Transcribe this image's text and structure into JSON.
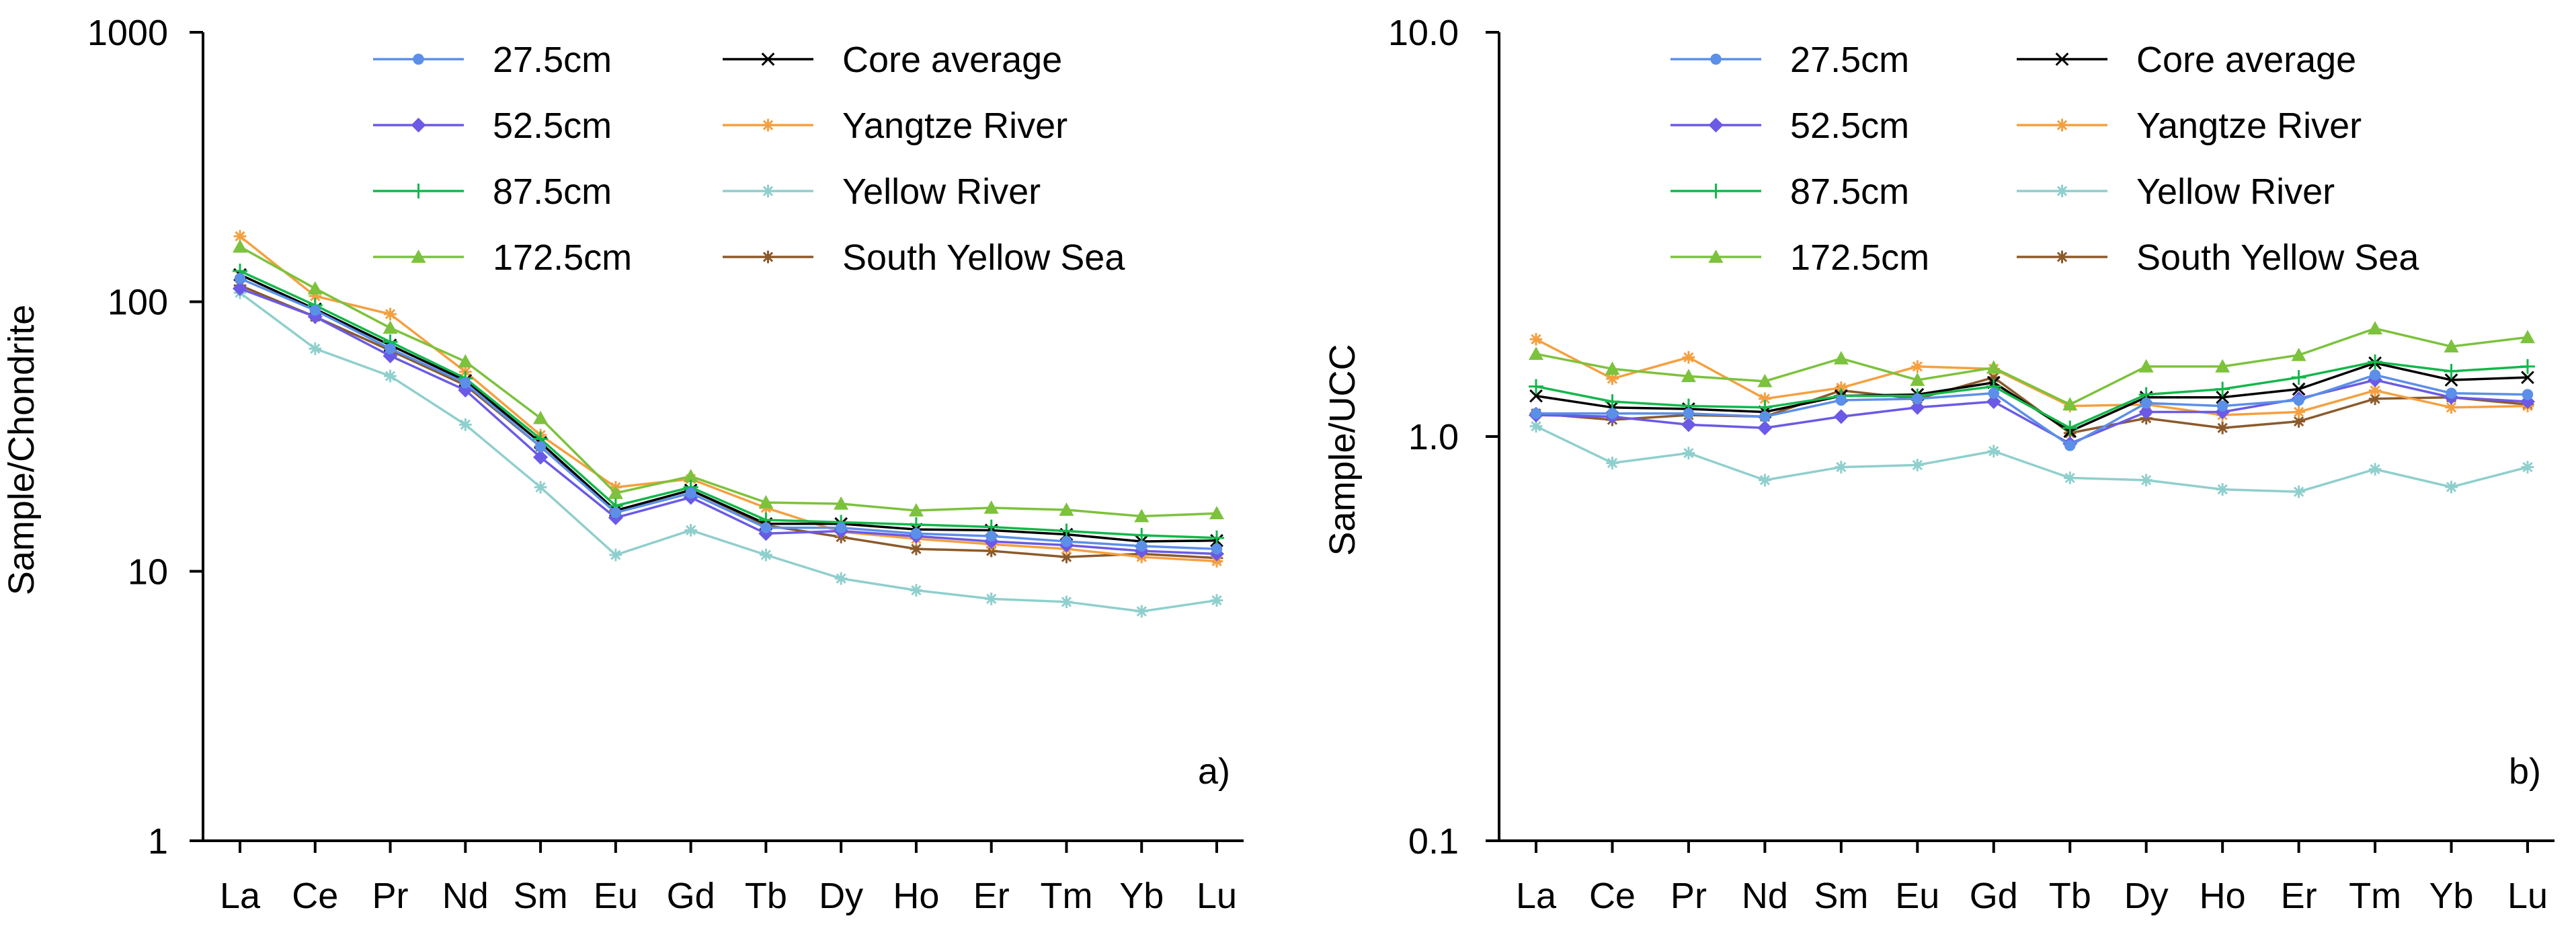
{
  "figure": {
    "caption": ""
  },
  "chart_data": [
    {
      "type": "line",
      "panel_label": "a)",
      "title": "",
      "xlabel": "",
      "ylabel": "Sample/Chondrite",
      "yscale": "log",
      "ylim": [
        1,
        1000
      ],
      "yticks": [
        "1",
        "10",
        "100",
        "1000"
      ],
      "categories": [
        "La",
        "Ce",
        "Pr",
        "Nd",
        "Sm",
        "Eu",
        "Gd",
        "Tb",
        "Dy",
        "Ho",
        "Er",
        "Tm",
        "Yb",
        "Lu"
      ],
      "legend_position": "top",
      "series": [
        {
          "name": "27.5cm",
          "color": "#5b8fe8",
          "marker": "circle",
          "values": [
            122,
            93,
            67,
            50,
            29,
            16.5,
            19.5,
            14.5,
            14.5,
            13.8,
            13.5,
            12.9,
            12.4,
            12.1
          ]
        },
        {
          "name": "52.5cm",
          "color": "#6a5ae6",
          "marker": "diamond",
          "values": [
            112,
            88,
            63,
            47,
            26.5,
            15.8,
            18.8,
            13.8,
            14.1,
            13.5,
            12.9,
            12.5,
            11.9,
            11.6
          ]
        },
        {
          "name": "87.5cm",
          "color": "#12b84a",
          "marker": "plus",
          "values": [
            130,
            97,
            71,
            52,
            31,
            17.5,
            20.5,
            15.5,
            15.2,
            14.9,
            14.6,
            14.1,
            13.6,
            13.3
          ]
        },
        {
          "name": "172.5cm",
          "color": "#7cc23c",
          "marker": "triangle",
          "values": [
            160,
            112,
            80,
            60,
            37,
            19.5,
            22.5,
            18.0,
            17.8,
            16.8,
            17.2,
            16.9,
            16.0,
            16.4
          ]
        },
        {
          "name": "Core average",
          "color": "#000000",
          "marker": "x",
          "values": [
            126,
            94,
            69,
            51,
            30,
            16.8,
            20.0,
            15.0,
            15.0,
            14.3,
            14.2,
            13.7,
            12.9,
            13.0
          ]
        },
        {
          "name": "Yangtze River",
          "color": "#f4a040",
          "marker": "star",
          "values": [
            175,
            105,
            90,
            55,
            32,
            20.5,
            22.0,
            17.2,
            14.0,
            13.2,
            12.6,
            12.1,
            11.3,
            10.9
          ]
        },
        {
          "name": "Yellow River",
          "color": "#8fcfcd",
          "marker": "star",
          "values": [
            108,
            67,
            53,
            35,
            20.5,
            11.5,
            14.2,
            11.5,
            9.4,
            8.5,
            7.9,
            7.7,
            7.1,
            7.8
          ]
        },
        {
          "name": "South Yellow Sea",
          "color": "#8b5a2b",
          "marker": "star",
          "values": [
            115,
            88,
            66,
            49,
            29,
            16.8,
            20.0,
            14.8,
            13.4,
            12.1,
            11.9,
            11.3,
            11.6,
            11.2
          ]
        }
      ]
    },
    {
      "type": "line",
      "panel_label": "b)",
      "title": "",
      "xlabel": "",
      "ylabel": "Sample/UCC",
      "yscale": "log",
      "ylim": [
        0.1,
        10
      ],
      "yticks": [
        "0.1",
        "1.0",
        "10.0"
      ],
      "categories": [
        "La",
        "Ce",
        "Pr",
        "Nd",
        "Sm",
        "Eu",
        "Gd",
        "Tb",
        "Dy",
        "Ho",
        "Er",
        "Tm",
        "Yb",
        "Lu"
      ],
      "legend_position": "top",
      "series": [
        {
          "name": "27.5cm",
          "color": "#5b8fe8",
          "marker": "circle",
          "values": [
            1.14,
            1.14,
            1.14,
            1.12,
            1.23,
            1.24,
            1.28,
            0.95,
            1.21,
            1.19,
            1.23,
            1.42,
            1.28,
            1.27
          ]
        },
        {
          "name": "52.5cm",
          "color": "#6a5ae6",
          "marker": "diamond",
          "values": [
            1.13,
            1.12,
            1.07,
            1.05,
            1.12,
            1.18,
            1.22,
            0.96,
            1.15,
            1.15,
            1.24,
            1.38,
            1.25,
            1.22
          ]
        },
        {
          "name": "87.5cm",
          "color": "#12b84a",
          "marker": "plus",
          "values": [
            1.33,
            1.22,
            1.19,
            1.18,
            1.26,
            1.26,
            1.33,
            1.05,
            1.27,
            1.31,
            1.4,
            1.53,
            1.45,
            1.49
          ]
        },
        {
          "name": "172.5cm",
          "color": "#7cc23c",
          "marker": "triangle",
          "values": [
            1.6,
            1.47,
            1.41,
            1.37,
            1.56,
            1.38,
            1.48,
            1.2,
            1.49,
            1.49,
            1.59,
            1.85,
            1.67,
            1.76
          ]
        },
        {
          "name": "Core average",
          "color": "#000000",
          "marker": "x",
          "values": [
            1.26,
            1.18,
            1.17,
            1.15,
            1.26,
            1.27,
            1.36,
            1.03,
            1.25,
            1.25,
            1.31,
            1.52,
            1.38,
            1.4
          ]
        },
        {
          "name": "Yangtze River",
          "color": "#f4a040",
          "marker": "star",
          "values": [
            1.74,
            1.39,
            1.57,
            1.24,
            1.32,
            1.49,
            1.47,
            1.19,
            1.2,
            1.13,
            1.15,
            1.3,
            1.18,
            1.19
          ]
        },
        {
          "name": "Yellow River",
          "color": "#8fcfcd",
          "marker": "star",
          "values": [
            1.06,
            0.86,
            0.91,
            0.78,
            0.84,
            0.85,
            0.92,
            0.79,
            0.78,
            0.74,
            0.73,
            0.83,
            0.75,
            0.84
          ]
        },
        {
          "name": "South Yellow Sea",
          "color": "#8b5a2b",
          "marker": "star",
          "values": [
            1.14,
            1.1,
            1.13,
            1.12,
            1.3,
            1.24,
            1.4,
            1.02,
            1.11,
            1.05,
            1.09,
            1.24,
            1.25,
            1.2
          ]
        }
      ]
    }
  ]
}
